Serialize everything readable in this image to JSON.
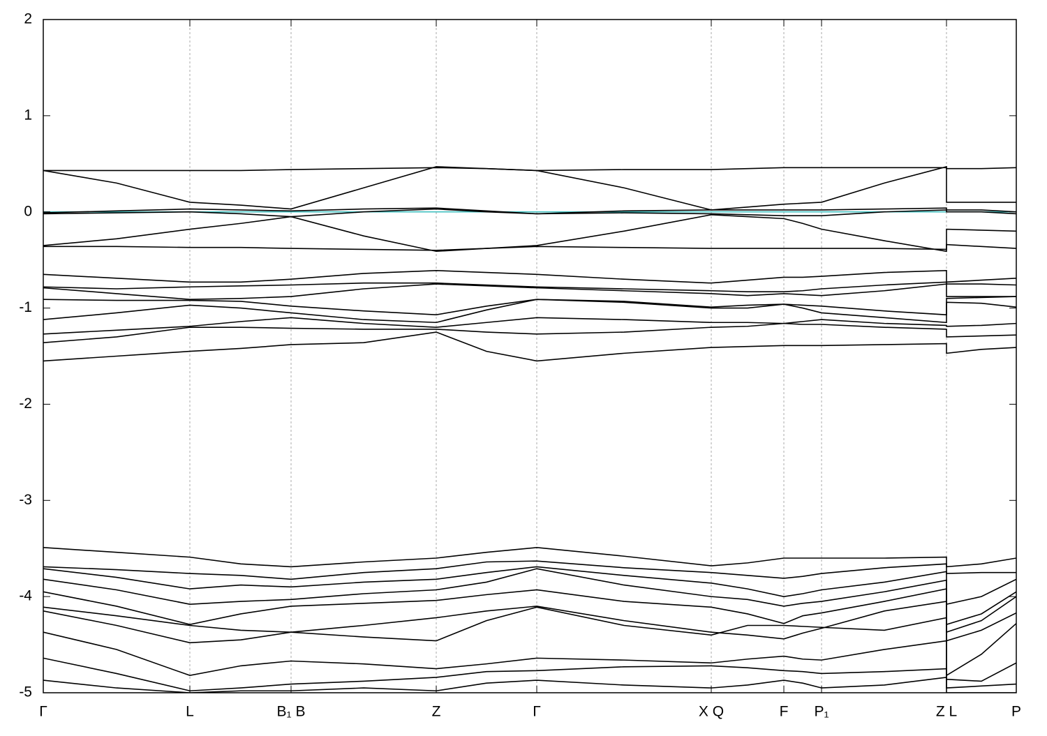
{
  "chart_data": {
    "type": "line",
    "x": [
      0,
      1.05,
      2.1,
      2.83,
      3.55,
      4.59,
      5.63,
      6.35,
      7.07,
      8.32,
      9.57,
      10.09,
      10.61,
      10.88,
      11.15,
      12.05,
      12.94,
      12.94,
      13.44,
      13.94
    ],
    "xlim": [
      0,
      13.94
    ],
    "xticks": [
      {
        "value": 0,
        "label": "Γ"
      },
      {
        "value": 2.1,
        "label": "L"
      },
      {
        "value": 3.55,
        "label": "B₁ B"
      },
      {
        "value": 5.63,
        "label": "Z"
      },
      {
        "value": 7.07,
        "label": "Γ"
      },
      {
        "value": 9.57,
        "label": "X Q"
      },
      {
        "value": 10.61,
        "label": "F"
      },
      {
        "value": 11.15,
        "label": "P₁"
      },
      {
        "value": 12.94,
        "label": "Z L"
      },
      {
        "value": 13.94,
        "label": "P"
      }
    ],
    "ylim": [
      -5,
      2
    ],
    "yticks": [
      -5,
      -4,
      -3,
      -2,
      -1,
      0,
      1,
      2
    ],
    "grid": true,
    "series": [
      {
        "color": "#40c0c0",
        "values": [
          0,
          0,
          0,
          0,
          0,
          0,
          0,
          0,
          0,
          0,
          0,
          0,
          0,
          0,
          0,
          0,
          0,
          0,
          0,
          0
        ]
      },
      {
        "color": "#000000",
        "values": [
          0.43,
          0.43,
          0.43,
          0.43,
          0.44,
          0.45,
          0.46,
          0.45,
          0.43,
          0.44,
          0.44,
          0.45,
          0.46,
          0.46,
          0.46,
          0.46,
          0.46,
          0.45,
          0.45,
          0.46
        ]
      },
      {
        "color": "#000000",
        "values": [
          0.43,
          0.3,
          0.1,
          0.07,
          0.03,
          0.25,
          0.47,
          0.45,
          0.43,
          0.25,
          0.02,
          0.05,
          0.08,
          0.09,
          0.1,
          0.3,
          0.47,
          0.1,
          0.1,
          0.1
        ]
      },
      {
        "color": "#000000",
        "values": [
          -0.01,
          0.01,
          0.03,
          0.02,
          0.01,
          0.03,
          0.04,
          0.01,
          -0.02,
          0.01,
          0.02,
          0.02,
          0.02,
          0.02,
          0.02,
          0.03,
          0.04,
          0.02,
          0.02,
          0.0
        ]
      },
      {
        "color": "#000000",
        "values": [
          -0.02,
          -0.01,
          0.0,
          -0.02,
          -0.05,
          0.0,
          0.03,
          0.0,
          -0.02,
          -0.01,
          -0.02,
          -0.03,
          -0.04,
          -0.04,
          -0.04,
          0.0,
          0.02,
          0.0,
          0.0,
          -0.02
        ]
      },
      {
        "color": "#000000",
        "values": [
          -0.35,
          -0.28,
          -0.18,
          -0.12,
          -0.05,
          -0.25,
          -0.41,
          -0.38,
          -0.35,
          -0.2,
          -0.03,
          -0.05,
          -0.07,
          -0.12,
          -0.18,
          -0.3,
          -0.41,
          -0.18,
          -0.19,
          -0.2
        ]
      },
      {
        "color": "#000000",
        "values": [
          -0.36,
          -0.36,
          -0.37,
          -0.37,
          -0.38,
          -0.39,
          -0.4,
          -0.38,
          -0.36,
          -0.37,
          -0.38,
          -0.38,
          -0.38,
          -0.38,
          -0.38,
          -0.38,
          -0.39,
          -0.34,
          -0.36,
          -0.38
        ]
      },
      {
        "color": "#000000",
        "values": [
          -0.65,
          -0.69,
          -0.73,
          -0.73,
          -0.7,
          -0.64,
          -0.61,
          -0.63,
          -0.65,
          -0.7,
          -0.74,
          -0.71,
          -0.68,
          -0.68,
          -0.67,
          -0.63,
          -0.61,
          -0.73,
          -0.71,
          -0.69
        ]
      },
      {
        "color": "#000000",
        "values": [
          -0.78,
          -0.8,
          -0.78,
          -0.77,
          -0.76,
          -0.74,
          -0.74,
          -0.76,
          -0.78,
          -0.8,
          -0.82,
          -0.83,
          -0.83,
          -0.82,
          -0.8,
          -0.76,
          -0.73,
          -0.75,
          -0.75,
          -0.76
        ]
      },
      {
        "color": "#000000",
        "values": [
          -0.79,
          -0.85,
          -0.91,
          -0.9,
          -0.88,
          -0.8,
          -0.75,
          -0.77,
          -0.79,
          -0.82,
          -0.85,
          -0.87,
          -0.85,
          -0.86,
          -0.87,
          -0.82,
          -0.75,
          -0.88,
          -0.88,
          -0.88
        ]
      },
      {
        "color": "#000000",
        "values": [
          -0.91,
          -0.92,
          -0.92,
          -0.93,
          -0.98,
          -1.03,
          -1.07,
          -0.98,
          -0.91,
          -0.94,
          -1.0,
          -1.0,
          -0.96,
          -0.97,
          -0.98,
          -1.03,
          -1.07,
          -0.9,
          -0.89,
          -0.88
        ]
      },
      {
        "color": "#000000",
        "values": [
          -1.12,
          -1.05,
          -0.97,
          -1.0,
          -1.05,
          -1.12,
          -1.15,
          -1.02,
          -0.91,
          -0.93,
          -0.99,
          -0.97,
          -0.96,
          -1.0,
          -1.05,
          -1.1,
          -1.15,
          -0.94,
          -0.95,
          -0.99
        ]
      },
      {
        "color": "#000000",
        "values": [
          -1.27,
          -1.23,
          -1.19,
          -1.14,
          -1.1,
          -1.16,
          -1.2,
          -1.15,
          -1.1,
          -1.12,
          -1.15,
          -1.15,
          -1.16,
          -1.14,
          -1.12,
          -1.16,
          -1.18,
          -1.19,
          -1.18,
          -1.16
        ]
      },
      {
        "color": "#000000",
        "values": [
          -1.36,
          -1.3,
          -1.2,
          -1.2,
          -1.21,
          -1.22,
          -1.22,
          -1.25,
          -1.27,
          -1.25,
          -1.2,
          -1.19,
          -1.16,
          -1.17,
          -1.17,
          -1.2,
          -1.22,
          -1.3,
          -1.29,
          -1.28
        ]
      },
      {
        "color": "#000000",
        "values": [
          -1.55,
          -1.5,
          -1.45,
          -1.42,
          -1.38,
          -1.36,
          -1.25,
          -1.45,
          -1.55,
          -1.47,
          -1.41,
          -1.4,
          -1.39,
          -1.39,
          -1.39,
          -1.38,
          -1.37,
          -1.47,
          -1.43,
          -1.41
        ]
      },
      {
        "color": "#000000",
        "values": [
          -3.49,
          -3.54,
          -3.59,
          -3.66,
          -3.69,
          -3.64,
          -3.6,
          -3.54,
          -3.49,
          -3.58,
          -3.68,
          -3.65,
          -3.6,
          -3.6,
          -3.6,
          -3.6,
          -3.59,
          -3.69,
          -3.66,
          -3.6
        ]
      },
      {
        "color": "#000000",
        "values": [
          -3.69,
          -3.72,
          -3.76,
          -3.78,
          -3.82,
          -3.75,
          -3.71,
          -3.64,
          -3.63,
          -3.7,
          -3.75,
          -3.78,
          -3.81,
          -3.79,
          -3.76,
          -3.7,
          -3.66,
          -3.76,
          -3.75,
          -3.75
        ]
      },
      {
        "color": "#000000",
        "values": [
          -3.71,
          -3.8,
          -3.92,
          -3.88,
          -3.9,
          -3.85,
          -3.82,
          -3.75,
          -3.69,
          -3.78,
          -3.86,
          -3.92,
          -4.0,
          -3.97,
          -3.93,
          -3.85,
          -3.74,
          -4.08,
          -4.0,
          -3.82
        ]
      },
      {
        "color": "#000000",
        "values": [
          -3.82,
          -3.93,
          -4.08,
          -4.05,
          -4.03,
          -3.97,
          -3.93,
          -3.85,
          -3.71,
          -3.88,
          -4.0,
          -4.03,
          -4.1,
          -4.07,
          -4.05,
          -3.95,
          -3.83,
          -4.29,
          -4.18,
          -3.95
        ]
      },
      {
        "color": "#000000",
        "values": [
          -3.95,
          -4.1,
          -4.29,
          -4.18,
          -4.1,
          -4.07,
          -4.04,
          -3.98,
          -3.93,
          -4.05,
          -4.11,
          -4.18,
          -4.28,
          -4.2,
          -4.17,
          -4.05,
          -3.92,
          -4.37,
          -4.25,
          -4.0
        ]
      },
      {
        "color": "#000000",
        "values": [
          -4.11,
          -4.2,
          -4.3,
          -4.35,
          -4.37,
          -4.3,
          -4.22,
          -4.15,
          -4.1,
          -4.25,
          -4.37,
          -4.4,
          -4.44,
          -4.38,
          -4.33,
          -4.15,
          -4.05,
          -4.46,
          -4.35,
          -4.17
        ]
      },
      {
        "color": "#000000",
        "values": [
          -4.15,
          -4.3,
          -4.48,
          -4.45,
          -4.37,
          -4.42,
          -4.46,
          -4.25,
          -4.11,
          -4.3,
          -4.4,
          -4.3,
          -4.3,
          -4.31,
          -4.32,
          -4.35,
          -4.22,
          -4.82,
          -4.6,
          -4.28
        ]
      },
      {
        "color": "#000000",
        "values": [
          -4.37,
          -4.55,
          -4.82,
          -4.72,
          -4.67,
          -4.7,
          -4.75,
          -4.7,
          -4.64,
          -4.66,
          -4.69,
          -4.65,
          -4.62,
          -4.65,
          -4.66,
          -4.55,
          -4.46,
          -4.86,
          -4.88,
          -4.69
        ]
      },
      {
        "color": "#000000",
        "values": [
          -4.64,
          -4.8,
          -4.98,
          -4.95,
          -4.91,
          -4.88,
          -4.84,
          -4.78,
          -4.77,
          -4.73,
          -4.72,
          -4.74,
          -4.77,
          -4.78,
          -4.8,
          -4.78,
          -4.75,
          -4.95,
          -4.93,
          -4.91
        ]
      },
      {
        "color": "#000000",
        "values": [
          -4.87,
          -4.95,
          -5.0,
          -4.98,
          -4.98,
          -4.95,
          -4.98,
          -4.9,
          -4.87,
          -4.92,
          -4.95,
          -4.92,
          -4.87,
          -4.9,
          -4.95,
          -4.92,
          -4.84,
          -5.0,
          -5.0,
          -5.0
        ]
      }
    ]
  }
}
